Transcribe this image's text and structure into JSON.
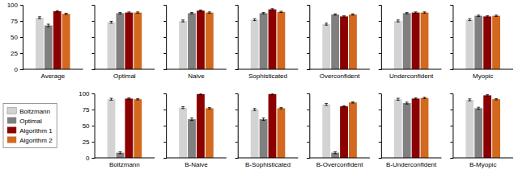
{
  "chart_data": [
    {
      "type": "bar",
      "categories": [
        "Average",
        "Optimal",
        "Naive",
        "Sophisticated",
        "Overconfident",
        "Underconfident",
        "Myopic"
      ],
      "series": [
        {
          "name": "Boltzmann",
          "color": "#d3d3d3",
          "values": [
            80,
            73,
            75,
            77,
            70,
            75,
            77
          ],
          "errors": [
            1.5,
            1.5,
            1.5,
            1.5,
            1.5,
            1.5,
            1.5
          ]
        },
        {
          "name": "Optimal",
          "color": "#808080",
          "values": [
            68,
            87,
            87,
            87,
            85,
            87,
            83
          ],
          "errors": [
            2.0,
            1.0,
            1.0,
            1.0,
            1.0,
            1.0,
            1.0
          ]
        },
        {
          "name": "Algorithm 1",
          "color": "#8b0000",
          "values": [
            90,
            88,
            91,
            93,
            82,
            88,
            82
          ],
          "errors": [
            1.0,
            1.0,
            1.0,
            1.0,
            1.0,
            1.0,
            1.0
          ]
        },
        {
          "name": "Algorithm 2",
          "color": "#d2691e",
          "values": [
            86,
            88,
            88,
            89,
            85,
            88,
            83
          ],
          "errors": [
            1.0,
            1.0,
            1.0,
            1.0,
            1.0,
            1.0,
            1.0
          ]
        }
      ],
      "ylim": [
        0,
        100
      ],
      "yticks": [
        0,
        25,
        50,
        75,
        100
      ]
    },
    {
      "type": "bar",
      "categories": [
        "Boltzmann",
        "B-Naive",
        "B-Sophisticated",
        "B-Overconfident",
        "B-Underconfident",
        "B-Myopic"
      ],
      "series": [
        {
          "name": "Boltzmann",
          "color": "#d3d3d3",
          "values": [
            91,
            78,
            75,
            83,
            91,
            90
          ],
          "errors": [
            1.5,
            1.5,
            1.5,
            1.5,
            1.5,
            1.5
          ]
        },
        {
          "name": "Optimal",
          "color": "#808080",
          "values": [
            8,
            60,
            60,
            8,
            85,
            77
          ],
          "errors": [
            1.5,
            2.0,
            2.0,
            1.5,
            1.5,
            1.5
          ]
        },
        {
          "name": "Algorithm 1",
          "color": "#8b0000",
          "values": [
            92,
            99,
            99,
            80,
            92,
            97
          ],
          "errors": [
            1.0,
            1.0,
            1.0,
            1.0,
            1.0,
            1.0
          ]
        },
        {
          "name": "Algorithm 2",
          "color": "#d2691e",
          "values": [
            91,
            77,
            77,
            86,
            93,
            91
          ],
          "errors": [
            1.0,
            1.0,
            1.0,
            1.0,
            1.0,
            1.0
          ]
        }
      ],
      "ylim": [
        0,
        100
      ],
      "yticks": [
        0,
        25,
        50,
        75,
        100
      ],
      "legend": "left"
    }
  ]
}
